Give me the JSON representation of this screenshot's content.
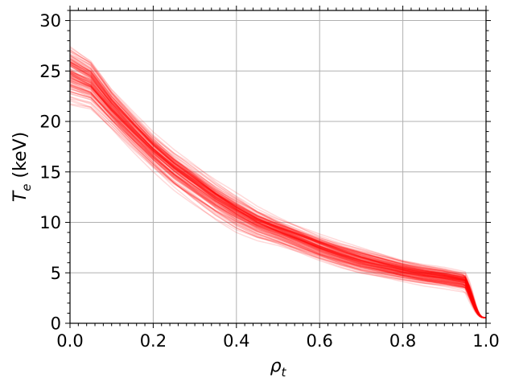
{
  "chart_data": {
    "type": "line",
    "title": "",
    "xlabel": {
      "base": "ρ",
      "sub": "t"
    },
    "ylabel": {
      "base": "T",
      "sub": "e",
      "rest": " (keV)"
    },
    "xlim": [
      0.0,
      1.0
    ],
    "ylim": [
      0,
      31
    ],
    "xticks": [
      0.0,
      0.2,
      0.4,
      0.6,
      0.8,
      1.0
    ],
    "xtick_labels": [
      "0.0",
      "0.2",
      "0.4",
      "0.6",
      "0.8",
      "1.0"
    ],
    "yticks": [
      0,
      5,
      10,
      15,
      20,
      25,
      30
    ],
    "ytick_labels": [
      "0",
      "5",
      "10",
      "15",
      "20",
      "25",
      "30"
    ],
    "grid": true,
    "line_color": "#ff0000",
    "line_alpha": 0.15,
    "series_count": 120,
    "median_profile": {
      "x": [
        0.0,
        0.05,
        0.1,
        0.15,
        0.2,
        0.25,
        0.3,
        0.35,
        0.4,
        0.45,
        0.5,
        0.55,
        0.6,
        0.65,
        0.7,
        0.75,
        0.8,
        0.85,
        0.9,
        0.95,
        0.97,
        0.99,
        1.0
      ],
      "y": [
        25.0,
        24.0,
        21.5,
        19.3,
        17.2,
        15.4,
        13.9,
        12.4,
        11.1,
        10.0,
        9.2,
        8.4,
        7.6,
        6.9,
        6.3,
        5.8,
        5.3,
        4.9,
        4.6,
        4.2,
        2.8,
        1.1,
        0.6
      ]
    },
    "profile_spread": {
      "x": [
        0.0,
        0.1,
        0.2,
        0.3,
        0.4,
        0.5,
        0.6,
        0.7,
        0.8,
        0.9,
        0.95,
        1.0
      ],
      "y_low": [
        21.5,
        19.5,
        15.0,
        11.8,
        9.2,
        7.9,
        6.6,
        5.3,
        4.5,
        3.8,
        3.4,
        0.5
      ],
      "y_high": [
        29.0,
        24.5,
        19.5,
        16.5,
        13.8,
        11.5,
        10.0,
        8.6,
        7.2,
        6.3,
        5.8,
        0.7
      ]
    }
  }
}
